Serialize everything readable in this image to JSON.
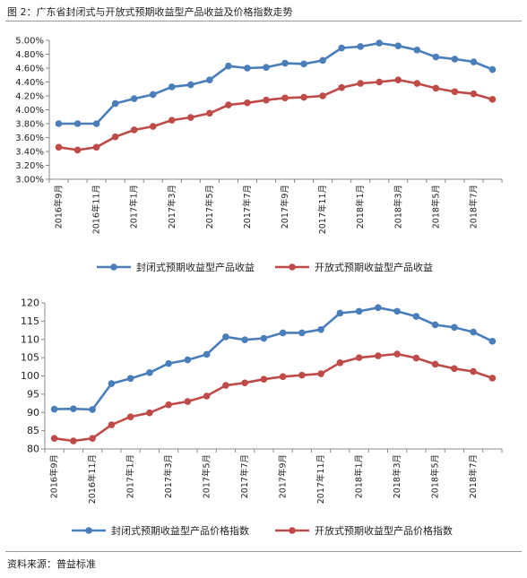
{
  "figure_title": "图 2：广东省封闭式与开放式预期收益型产品收益及价格指数走势",
  "source_note": "资料来源：普益标准",
  "chart_data": [
    {
      "type": "line",
      "x": [
        "2016年9月",
        "2016年10月",
        "2016年11月",
        "2016年12月",
        "2017年1月",
        "2017年2月",
        "2017年3月",
        "2017年4月",
        "2017年5月",
        "2017年6月",
        "2017年7月",
        "2017年8月",
        "2017年9月",
        "2017年10月",
        "2017年11月",
        "2017年12月",
        "2018年1月",
        "2018年2月",
        "2018年3月",
        "2018年4月",
        "2018年5月",
        "2018年6月",
        "2018年7月",
        "2018年8月"
      ],
      "x_tick_labels": [
        "2016年9月",
        "",
        "2016年11月",
        "",
        "2017年1月",
        "",
        "2017年3月",
        "",
        "2017年5月",
        "",
        "2017年7月",
        "",
        "2017年9月",
        "",
        "2017年11月",
        "",
        "2018年1月",
        "",
        "2018年3月",
        "",
        "2018年5月",
        "",
        "2018年7月",
        ""
      ],
      "y_ticks": [
        "3.00%",
        "3.20%",
        "3.40%",
        "3.60%",
        "3.80%",
        "4.00%",
        "4.20%",
        "4.40%",
        "4.60%",
        "4.80%",
        "5.00%"
      ],
      "ylim": [
        3.0,
        5.0
      ],
      "series": [
        {
          "name": "封闭式预期收益型产品收益",
          "color": "#4a7ebb",
          "values": [
            3.8,
            3.8,
            3.8,
            4.09,
            4.16,
            4.22,
            4.33,
            4.36,
            4.43,
            4.63,
            4.6,
            4.61,
            4.67,
            4.66,
            4.71,
            4.89,
            4.91,
            4.96,
            4.92,
            4.86,
            4.76,
            4.73,
            4.69,
            4.58
          ]
        },
        {
          "name": "开放式预期收益型产品收益",
          "color": "#be4b48",
          "values": [
            3.46,
            3.42,
            3.46,
            3.61,
            3.71,
            3.76,
            3.85,
            3.89,
            3.95,
            4.07,
            4.1,
            4.14,
            4.17,
            4.18,
            4.2,
            4.32,
            4.38,
            4.4,
            4.43,
            4.38,
            4.31,
            4.26,
            4.23,
            4.15
          ]
        }
      ],
      "grid": false,
      "legend_position": "bottom"
    },
    {
      "type": "line",
      "x": [
        "2016年9月",
        "2016年10月",
        "2016年11月",
        "2016年12月",
        "2017年1月",
        "2017年2月",
        "2017年3月",
        "2017年4月",
        "2017年5月",
        "2017年6月",
        "2017年7月",
        "2017年8月",
        "2017年9月",
        "2017年10月",
        "2017年11月",
        "2017年12月",
        "2018年1月",
        "2018年2月",
        "2018年3月",
        "2018年4月",
        "2018年5月",
        "2018年6月",
        "2018年7月",
        "2018年8月"
      ],
      "x_tick_labels": [
        "2016年9月",
        "",
        "2016年11月",
        "",
        "2017年1月",
        "",
        "2017年3月",
        "",
        "2017年5月",
        "",
        "2017年7月",
        "",
        "2017年9月",
        "",
        "2017年11月",
        "",
        "2018年1月",
        "",
        "2018年3月",
        "",
        "2018年5月",
        "",
        "2018年7月",
        ""
      ],
      "y_ticks": [
        "80",
        "85",
        "90",
        "95",
        "100",
        "105",
        "110",
        "115",
        "120"
      ],
      "ylim": [
        80,
        120
      ],
      "series": [
        {
          "name": "封闭式预期收益型产品价格指数",
          "color": "#4a7ebb",
          "values": [
            90.9,
            91.0,
            90.8,
            97.9,
            99.3,
            100.9,
            103.4,
            104.4,
            105.9,
            110.7,
            109.9,
            110.3,
            111.8,
            111.8,
            112.7,
            117.2,
            117.7,
            118.7,
            117.7,
            116.3,
            114.0,
            113.3,
            112.0,
            109.5
          ]
        },
        {
          "name": "开放式预期收益型产品价格指数",
          "color": "#be4b48",
          "values": [
            82.9,
            82.2,
            82.9,
            86.6,
            88.8,
            89.9,
            92.1,
            93.0,
            94.5,
            97.4,
            98.1,
            99.1,
            99.8,
            100.2,
            100.6,
            103.6,
            105.0,
            105.5,
            106.0,
            104.9,
            103.2,
            102.0,
            101.2,
            99.4
          ]
        }
      ],
      "grid": false,
      "legend_position": "bottom"
    }
  ]
}
